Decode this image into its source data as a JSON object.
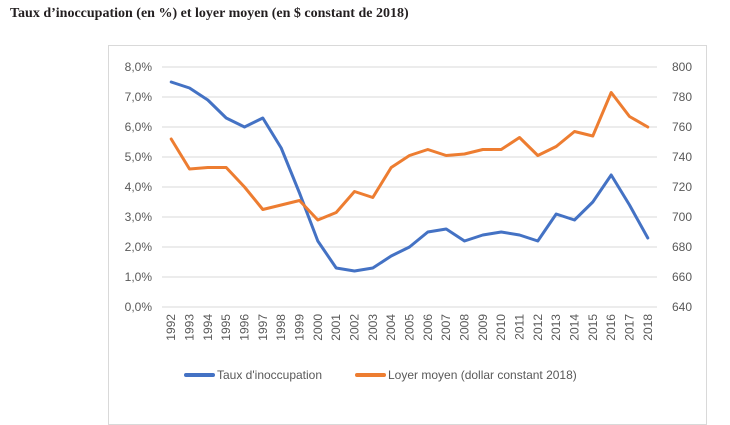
{
  "title": "Taux d’inoccupation (en %) et loyer moyen (en $ constant de 2018)",
  "chart_data": {
    "type": "line",
    "title": "Taux d’inoccupation (en %) et loyer moyen (en $ constant de 2018)",
    "categories": [
      "1992",
      "1993",
      "1994",
      "1995",
      "1996",
      "1997",
      "1998",
      "1999",
      "2000",
      "2001",
      "2002",
      "2003",
      "2004",
      "2005",
      "2006",
      "2007",
      "2008",
      "2009",
      "2010",
      "2011",
      "2012",
      "2013",
      "2014",
      "2015",
      "2016",
      "2017",
      "2018"
    ],
    "y_left": {
      "ylim": [
        0,
        8
      ],
      "ticks": [
        "0,0%",
        "1,0%",
        "2,0%",
        "3,0%",
        "4,0%",
        "5,0%",
        "6,0%",
        "7,0%",
        "8,0%"
      ],
      "tick_values": [
        0,
        1,
        2,
        3,
        4,
        5,
        6,
        7,
        8
      ]
    },
    "y_right": {
      "ylim": [
        640,
        800
      ],
      "ticks": [
        "640",
        "660",
        "680",
        "700",
        "720",
        "740",
        "760",
        "780",
        "800"
      ],
      "tick_values": [
        640,
        660,
        680,
        700,
        720,
        740,
        760,
        780,
        800
      ]
    },
    "grid": true,
    "legend_position": "bottom",
    "series": [
      {
        "name": "Taux d'inoccupation",
        "axis": "left",
        "color": "#4472c4",
        "values": [
          7.5,
          7.3,
          6.9,
          6.3,
          6.0,
          6.3,
          5.3,
          3.8,
          2.2,
          1.3,
          1.2,
          1.3,
          1.7,
          2.0,
          2.5,
          2.6,
          2.2,
          2.4,
          2.5,
          2.4,
          2.2,
          3.1,
          2.9,
          3.5,
          4.4,
          3.4,
          2.3
        ]
      },
      {
        "name": "Loyer moyen (dollar constant 2018)",
        "axis": "right",
        "color": "#ed7d31",
        "values": [
          752,
          732,
          733,
          733,
          720,
          705,
          708,
          711,
          698,
          703,
          717,
          713,
          733,
          741,
          745,
          741,
          742,
          745,
          745,
          753,
          741,
          747,
          757,
          754,
          783,
          767,
          760
        ]
      }
    ]
  }
}
